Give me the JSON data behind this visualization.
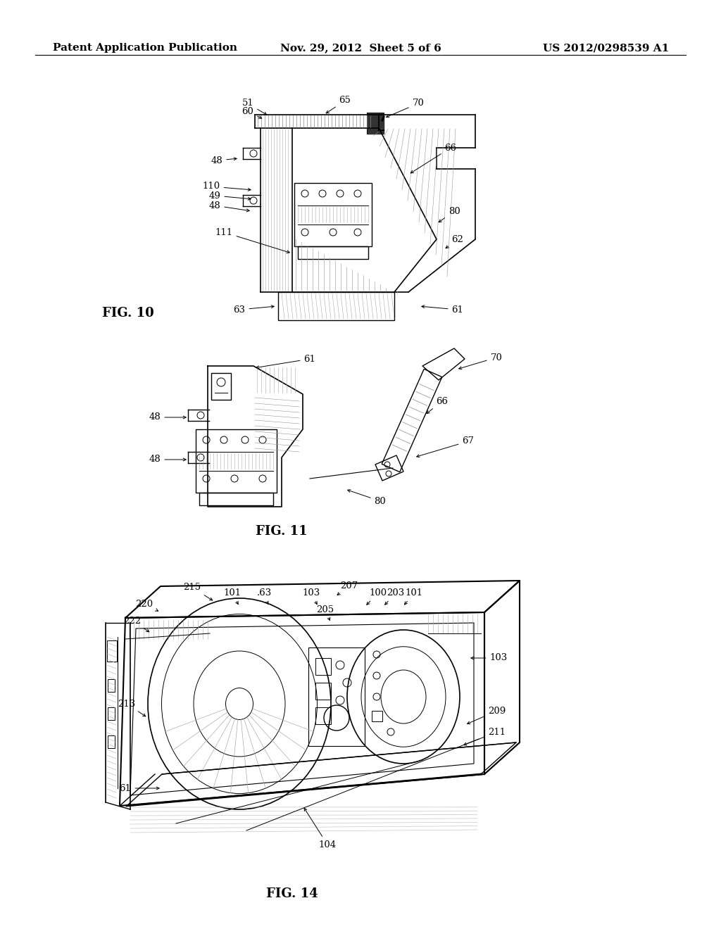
{
  "background_color": "#ffffff",
  "header_left": "Patent Application Publication",
  "header_center": "Nov. 29, 2012  Sheet 5 of 6",
  "header_right": "US 2012/0298539 A1",
  "fig_width": 10.24,
  "fig_height": 13.2,
  "fig10_label": "FIG. 10",
  "fig11_label": "FIG. 11",
  "fig14_label": "FIG. 14",
  "line_color": "#000000",
  "label_fontsize": 9.5,
  "figlabel_fontsize": 13
}
